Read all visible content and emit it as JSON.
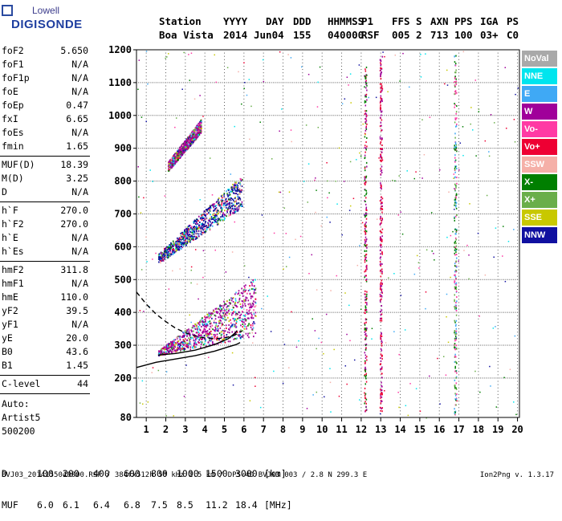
{
  "logo": {
    "top": "Lowell",
    "bottom": "DIGISONDE"
  },
  "header": {
    "labels": [
      "Station",
      "YYYY",
      "DAY",
      "DDD",
      "HHMMSS",
      "P1",
      "FFS",
      "S",
      "AXN",
      "PPS",
      "IGA",
      "PS"
    ],
    "values": [
      "Boa Vista",
      "2014",
      "Jun04",
      "155",
      "040000",
      "RSF",
      "005",
      "2",
      "713",
      "100",
      "03+",
      "C0"
    ]
  },
  "params": [
    {
      "name": "foF2",
      "value": "5.650"
    },
    {
      "name": "foF1",
      "value": "N/A"
    },
    {
      "name": "foF1p",
      "value": "N/A"
    },
    {
      "name": "foE",
      "value": "N/A"
    },
    {
      "name": "foEp",
      "value": "0.47"
    },
    {
      "name": "fxI",
      "value": "6.65"
    },
    {
      "name": "foEs",
      "value": "N/A"
    },
    {
      "name": "fmin",
      "value": "1.65"
    },
    {
      "name": "MUF(D)",
      "value": "18.39"
    },
    {
      "name": "M(D)",
      "value": "3.25"
    },
    {
      "name": "D",
      "value": "N/A"
    },
    {
      "name": "h`F",
      "value": "270.0"
    },
    {
      "name": "h`F2",
      "value": "270.0"
    },
    {
      "name": "h`E",
      "value": "N/A"
    },
    {
      "name": "h`Es",
      "value": "N/A"
    },
    {
      "name": "hmF2",
      "value": "311.8"
    },
    {
      "name": "hmF1",
      "value": "N/A"
    },
    {
      "name": "hmE",
      "value": "110.0"
    },
    {
      "name": "yF2",
      "value": "39.5"
    },
    {
      "name": "yF1",
      "value": "N/A"
    },
    {
      "name": "yE",
      "value": "20.0"
    },
    {
      "name": "B0",
      "value": "43.6"
    },
    {
      "name": "B1",
      "value": "1.45"
    },
    {
      "name": "C-level",
      "value": "44"
    }
  ],
  "auto": [
    "Auto:",
    "Artist5",
    "500200"
  ],
  "legend": [
    {
      "label": "NoVal",
      "color": "#a9a9a9"
    },
    {
      "label": "NNE",
      "color": "#00e5ee"
    },
    {
      "label": "E",
      "color": "#3fa9f5"
    },
    {
      "label": "W",
      "color": "#a0009a"
    },
    {
      "label": "Vo-",
      "color": "#ff3aa4"
    },
    {
      "label": "Vo+",
      "color": "#ee0033"
    },
    {
      "label": "SSW",
      "color": "#f5b0a8"
    },
    {
      "label": "X-",
      "color": "#007f00"
    },
    {
      "label": "X+",
      "color": "#6aae4a"
    },
    {
      "label": "SSE",
      "color": "#c8c800"
    },
    {
      "label": "NNW",
      "color": "#1010a0"
    }
  ],
  "muf_table": {
    "d_label": "D",
    "d_values": [
      "100",
      "200",
      "400",
      "600",
      "800",
      "1000",
      "1500",
      "3000"
    ],
    "d_unit": "[km]",
    "muf_label": "MUF",
    "muf_values": [
      "6.0",
      "6.1",
      "6.4",
      "6.8",
      "7.5",
      "8.5",
      "11.2",
      "18.4"
    ],
    "muf_unit": "[MHz]"
  },
  "footer": {
    "text": "BVJ03_2014155040000.RSF / 384fx512h 50 kHz 2.5 km / DPS-4D BVJ03 003 / 2.8 N 299.3 E",
    "version": "Ion2Png v. 1.3.17"
  },
  "chart_data": {
    "type": "scatter",
    "title": "",
    "xlabel": "",
    "ylabel": "",
    "xlim": [
      0.5,
      20.1
    ],
    "ylim": [
      80,
      1200
    ],
    "x_ticks": [
      1,
      2,
      3,
      4,
      5,
      6,
      7,
      8,
      9,
      10,
      11,
      12,
      13,
      14,
      15,
      16,
      17,
      18,
      19,
      20
    ],
    "y_ticks": [
      80,
      200,
      300,
      400,
      500,
      600,
      700,
      800,
      900,
      1000,
      1100,
      1200
    ],
    "grid": true,
    "lines": [
      {
        "name": "profile-solid-lower",
        "color": "#000000",
        "dash": false,
        "points": [
          [
            0.5,
            232
          ],
          [
            1.5,
            248
          ],
          [
            2.5,
            258
          ],
          [
            3.5,
            268
          ],
          [
            4.5,
            282
          ],
          [
            5.2,
            295
          ],
          [
            5.6,
            302
          ],
          [
            5.8,
            308
          ]
        ]
      },
      {
        "name": "profile-solid-upper",
        "color": "#000000",
        "dash": false,
        "points": [
          [
            1.6,
            270
          ],
          [
            2.5,
            275
          ],
          [
            3.5,
            285
          ],
          [
            4.5,
            302
          ],
          [
            5.2,
            320
          ],
          [
            5.6,
            340
          ],
          [
            5.65,
            345
          ]
        ]
      },
      {
        "name": "profile-dashed",
        "color": "#000000",
        "dash": true,
        "points": [
          [
            0.5,
            462
          ],
          [
            1.0,
            425
          ],
          [
            1.5,
            395
          ],
          [
            2.0,
            372
          ],
          [
            2.5,
            352
          ],
          [
            3.0,
            338
          ],
          [
            3.5,
            328
          ],
          [
            4.0,
            322
          ],
          [
            4.5,
            320
          ],
          [
            5.0,
            322
          ],
          [
            5.5,
            330
          ],
          [
            5.9,
            343
          ]
        ]
      }
    ],
    "trace_bands": [
      {
        "x": [
          1.6,
          6.6
        ],
        "y0": [
          270,
          330
        ],
        "y1": [
          285,
          510
        ],
        "color": "#a0009a"
      },
      {
        "x": [
          1.6,
          5.9
        ],
        "y0": [
          550,
          720
        ],
        "y1": [
          580,
          820
        ],
        "color": "#1010a0"
      },
      {
        "x": [
          2.1,
          3.8
        ],
        "y0": [
          830,
          950
        ],
        "y1": [
          860,
          990
        ],
        "color": "#a0009a"
      }
    ],
    "vertical_bands": [
      {
        "x": 16.8,
        "y": [
          90,
          1190
        ],
        "colors": [
          "#ff3aa4",
          "#007f00",
          "#6aae4a",
          "#3fa9f5"
        ]
      },
      {
        "x": 12.2,
        "y": [
          100,
          1150
        ],
        "colors": [
          "#a0009a",
          "#ee0033",
          "#007f00"
        ]
      },
      {
        "x": 13.0,
        "y": [
          100,
          1190
        ],
        "colors": [
          "#a0009a",
          "#ee0033"
        ]
      }
    ]
  }
}
